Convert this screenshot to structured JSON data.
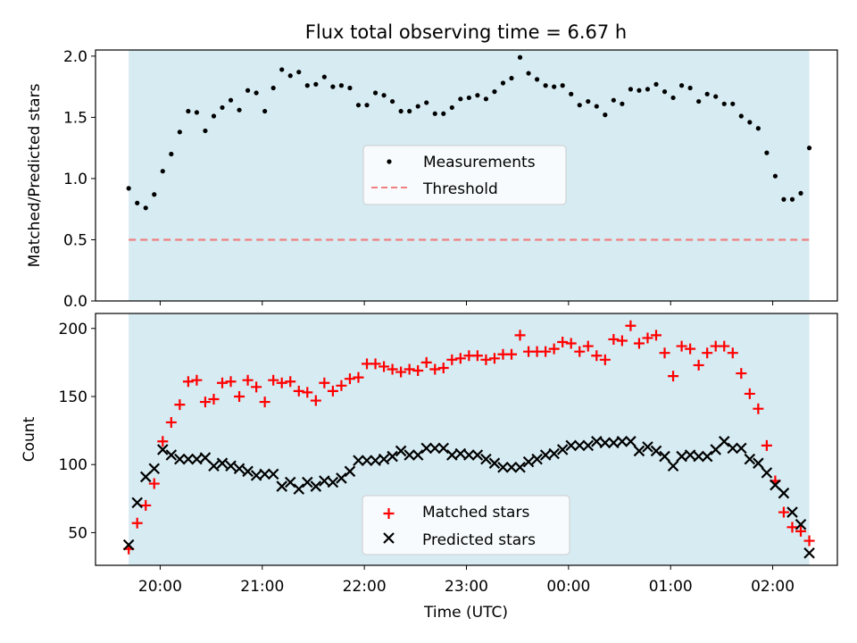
{
  "title": "Flux total observing time = 6.67 h",
  "xlabel": "Time (UTC)",
  "colors": {
    "band": "#add8e6",
    "measurement": "#000000",
    "threshold": "#f08080",
    "matched": "#ff0000",
    "predicted": "#000000"
  },
  "chart_data": [
    {
      "type": "scatter",
      "ylabel": "Matched/Predicted stars",
      "ylim": [
        0,
        2.05
      ],
      "yticks": [
        "0.0",
        "0.5",
        "1.0",
        "1.5",
        "2.0"
      ],
      "ytick_values": [
        0,
        0.5,
        1.0,
        1.5,
        2.0
      ],
      "legend_placement": "center",
      "legend": [
        "Measurements",
        "Threshold"
      ],
      "threshold": 0.5,
      "series": [
        {
          "name": "Measurements",
          "values": [
            0.92,
            0.8,
            0.76,
            0.87,
            1.06,
            1.2,
            1.38,
            1.55,
            1.54,
            1.39,
            1.51,
            1.58,
            1.64,
            1.56,
            1.72,
            1.7,
            1.55,
            1.74,
            1.89,
            1.84,
            1.87,
            1.76,
            1.77,
            1.83,
            1.75,
            1.76,
            1.74,
            1.6,
            1.6,
            1.7,
            1.68,
            1.63,
            1.55,
            1.55,
            1.59,
            1.62,
            1.53,
            1.53,
            1.58,
            1.65,
            1.66,
            1.68,
            1.65,
            1.71,
            1.78,
            1.82,
            1.99,
            1.86,
            1.81,
            1.76,
            1.75,
            1.76,
            1.69,
            1.6,
            1.63,
            1.59,
            1.52,
            1.64,
            1.61,
            1.73,
            1.72,
            1.73,
            1.77,
            1.71,
            1.66,
            1.76,
            1.74,
            1.63,
            1.69,
            1.67,
            1.61,
            1.61,
            1.51,
            1.46,
            1.41,
            1.21,
            1.02,
            0.83,
            0.83,
            0.88,
            1.25
          ]
        }
      ]
    },
    {
      "type": "scatter",
      "ylabel": "Count",
      "ylim": [
        26,
        211
      ],
      "yticks": [
        "50",
        "100",
        "150",
        "200"
      ],
      "ytick_values": [
        50,
        100,
        150,
        200
      ],
      "legend_placement": "lower center",
      "series": [
        {
          "name": "Matched stars",
          "values": [
            38,
            57,
            70,
            86,
            117,
            131,
            144,
            161,
            162,
            146,
            148,
            160,
            161,
            150,
            162,
            157,
            146,
            162,
            160,
            161,
            154,
            153,
            147,
            160,
            154,
            158,
            163,
            164,
            174,
            174,
            172,
            170,
            168,
            170,
            169,
            175,
            170,
            171,
            177,
            178,
            180,
            180,
            177,
            178,
            181,
            181,
            195,
            183,
            183,
            183,
            185,
            190,
            189,
            183,
            187,
            180,
            177,
            192,
            191,
            202,
            189,
            193,
            195,
            182,
            165,
            187,
            185,
            173,
            182,
            187,
            187,
            182,
            167,
            152,
            141,
            114,
            88,
            65,
            54,
            51,
            44
          ]
        },
        {
          "name": "Predicted stars",
          "values": [
            41,
            72,
            91,
            97,
            111,
            107,
            104,
            104,
            104,
            105,
            99,
            101,
            99,
            97,
            95,
            92,
            93,
            93,
            84,
            87,
            82,
            87,
            84,
            88,
            87,
            90,
            95,
            103,
            103,
            103,
            104,
            106,
            110,
            107,
            107,
            112,
            112,
            112,
            107,
            108,
            107,
            107,
            104,
            101,
            98,
            98,
            98,
            102,
            104,
            107,
            108,
            111,
            114,
            114,
            114,
            117,
            116,
            116,
            117,
            117,
            110,
            113,
            110,
            106,
            99,
            106,
            107,
            106,
            106,
            111,
            117,
            112,
            112,
            104,
            101,
            94,
            85,
            79,
            65,
            56,
            35
          ]
        }
      ],
      "legend": [
        "Matched stars",
        "Predicted stars"
      ]
    }
  ],
  "x_axis": {
    "start_minute": -18.5,
    "step_minutes": 5,
    "band_start_minute": -18.5,
    "band_end_minute": 381.5,
    "xlim": [
      -38,
      398
    ],
    "tick_minutes": [
      0,
      60,
      120,
      180,
      240,
      300,
      360
    ],
    "tick_labels": [
      "20:00",
      "21:00",
      "22:00",
      "23:00",
      "00:00",
      "01:00",
      "02:00"
    ]
  }
}
